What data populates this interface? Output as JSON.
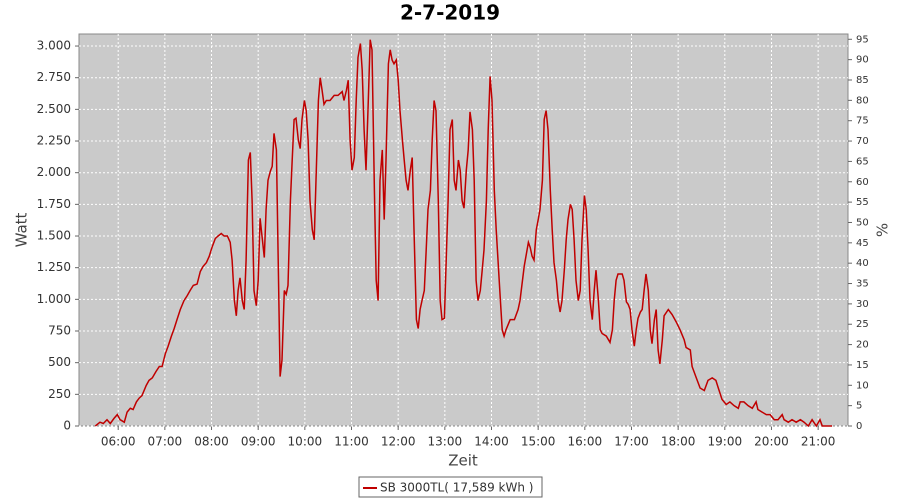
{
  "chart_data": {
    "type": "line",
    "title": "2-7-2019",
    "x_label": "Zeit",
    "y_label": "Watt",
    "y2_label": "%",
    "x": [
      5.51,
      5.61,
      5.68,
      5.76,
      5.83,
      5.91,
      5.98,
      6.04,
      6.13,
      6.19,
      6.26,
      6.32,
      6.39,
      6.45,
      6.51,
      6.6,
      6.66,
      6.73,
      6.81,
      6.88,
      6.94,
      7.01,
      7.07,
      7.14,
      7.2,
      7.26,
      7.33,
      7.41,
      7.48,
      7.54,
      7.61,
      7.69,
      7.76,
      7.82,
      7.89,
      7.95,
      8.01,
      8.08,
      8.14,
      8.21,
      8.27,
      8.34,
      8.4,
      8.44,
      8.49,
      8.53,
      8.57,
      8.61,
      8.66,
      8.7,
      8.74,
      8.79,
      8.83,
      8.87,
      8.91,
      8.96,
      9.0,
      9.04,
      9.09,
      9.13,
      9.17,
      9.21,
      9.26,
      9.3,
      9.34,
      9.39,
      9.43,
      9.47,
      9.51,
      9.56,
      9.6,
      9.64,
      9.69,
      9.73,
      9.77,
      9.81,
      9.86,
      9.9,
      9.94,
      9.99,
      10.03,
      10.07,
      10.11,
      10.16,
      10.2,
      10.24,
      10.29,
      10.33,
      10.37,
      10.41,
      10.46,
      10.54,
      10.63,
      10.71,
      10.8,
      10.84,
      10.89,
      10.93,
      10.97,
      11.01,
      11.06,
      11.1,
      11.14,
      11.19,
      11.23,
      11.27,
      11.31,
      11.36,
      11.4,
      11.44,
      11.49,
      11.53,
      11.57,
      11.61,
      11.66,
      11.7,
      11.74,
      11.79,
      11.83,
      11.87,
      11.91,
      11.96,
      12.0,
      12.04,
      12.09,
      12.13,
      12.17,
      12.21,
      12.26,
      12.3,
      12.34,
      12.39,
      12.43,
      12.47,
      12.51,
      12.56,
      12.6,
      12.64,
      12.69,
      12.73,
      12.77,
      12.81,
      12.86,
      12.9,
      12.94,
      12.99,
      13.03,
      13.07,
      13.11,
      13.16,
      13.2,
      13.24,
      13.29,
      13.33,
      13.37,
      13.41,
      13.46,
      13.5,
      13.54,
      13.59,
      13.63,
      13.67,
      13.71,
      13.76,
      13.8,
      13.84,
      13.89,
      13.93,
      13.97,
      14.01,
      14.06,
      14.1,
      14.14,
      14.19,
      14.23,
      14.27,
      14.31,
      14.4,
      14.49,
      14.57,
      14.61,
      14.7,
      14.79,
      14.83,
      14.87,
      14.91,
      14.96,
      15.0,
      15.04,
      15.09,
      15.13,
      15.17,
      15.21,
      15.26,
      15.3,
      15.34,
      15.39,
      15.43,
      15.47,
      15.51,
      15.56,
      15.6,
      15.64,
      15.69,
      15.73,
      15.77,
      15.81,
      15.86,
      15.9,
      15.94,
      15.99,
      16.03,
      16.07,
      16.11,
      16.16,
      16.2,
      16.24,
      16.29,
      16.33,
      16.37,
      16.46,
      16.54,
      16.59,
      16.63,
      16.67,
      16.71,
      16.8,
      16.84,
      16.89,
      16.93,
      16.97,
      17.01,
      17.06,
      17.1,
      17.14,
      17.19,
      17.23,
      17.27,
      17.31,
      17.36,
      17.4,
      17.44,
      17.49,
      17.53,
      17.57,
      17.61,
      17.66,
      17.7,
      17.79,
      17.87,
      17.96,
      18.04,
      18.13,
      18.17,
      18.26,
      18.3,
      18.39,
      18.47,
      18.56,
      18.64,
      18.73,
      18.81,
      18.86,
      18.94,
      19.03,
      19.11,
      19.2,
      19.29,
      19.33,
      19.41,
      19.5,
      19.59,
      19.67,
      19.71,
      19.8,
      19.89,
      19.97,
      20.06,
      20.14,
      20.23,
      20.27,
      20.36,
      20.44,
      20.53,
      20.62,
      20.7,
      20.79,
      20.87,
      20.96,
      21.04,
      21.09,
      21.17,
      21.3
    ],
    "series": [
      {
        "name": "SB 3000TL( 17,589 kWh )",
        "color": "#c00000",
        "values": [
          0,
          30,
          20,
          50,
          20,
          60,
          90,
          50,
          30,
          110,
          140,
          130,
          190,
          220,
          240,
          320,
          360,
          380,
          430,
          470,
          470,
          570,
          630,
          710,
          770,
          840,
          920,
          990,
          1030,
          1070,
          1110,
          1120,
          1220,
          1260,
          1290,
          1340,
          1410,
          1480,
          1500,
          1520,
          1500,
          1500,
          1450,
          1310,
          990,
          870,
          1070,
          1170,
          990,
          920,
          1310,
          2100,
          2160,
          1780,
          1070,
          950,
          1150,
          1640,
          1470,
          1330,
          1710,
          1940,
          2010,
          2050,
          2310,
          2180,
          1310,
          390,
          520,
          1070,
          1040,
          1110,
          1780,
          2100,
          2420,
          2430,
          2260,
          2190,
          2420,
          2570,
          2490,
          2260,
          1780,
          1550,
          1470,
          1940,
          2570,
          2750,
          2650,
          2540,
          2570,
          2570,
          2610,
          2610,
          2640,
          2570,
          2650,
          2730,
          2260,
          2020,
          2120,
          2570,
          2910,
          3020,
          2810,
          2340,
          2020,
          2570,
          3050,
          2970,
          1860,
          1150,
          990,
          1940,
          2180,
          1630,
          2100,
          2860,
          2970,
          2890,
          2860,
          2890,
          2730,
          2490,
          2260,
          2100,
          1940,
          1860,
          2020,
          2120,
          1550,
          840,
          770,
          920,
          990,
          1070,
          1390,
          1710,
          1860,
          2260,
          2570,
          2490,
          1780,
          990,
          840,
          850,
          1310,
          1780,
          2340,
          2420,
          1940,
          1860,
          2100,
          2020,
          1780,
          1720,
          2020,
          2180,
          2480,
          2340,
          1940,
          1150,
          990,
          1070,
          1230,
          1390,
          1780,
          2340,
          2760,
          2570,
          1860,
          1550,
          1310,
          990,
          760,
          710,
          760,
          840,
          840,
          920,
          990,
          1260,
          1450,
          1410,
          1340,
          1310,
          1550,
          1630,
          1710,
          1940,
          2420,
          2490,
          2340,
          1860,
          1550,
          1290,
          1150,
          990,
          900,
          990,
          1230,
          1470,
          1630,
          1750,
          1710,
          1470,
          1150,
          990,
          1070,
          1470,
          1820,
          1710,
          1390,
          990,
          840,
          1070,
          1230,
          990,
          760,
          730,
          710,
          660,
          760,
          990,
          1150,
          1200,
          1200,
          1150,
          980,
          960,
          920,
          760,
          630,
          760,
          850,
          900,
          920,
          1070,
          1200,
          1070,
          760,
          650,
          840,
          920,
          600,
          490,
          680,
          870,
          920,
          880,
          820,
          760,
          680,
          620,
          600,
          470,
          380,
          300,
          280,
          360,
          380,
          360,
          300,
          210,
          170,
          190,
          160,
          140,
          190,
          190,
          160,
          140,
          190,
          130,
          110,
          90,
          90,
          50,
          50,
          90,
          50,
          30,
          50,
          30,
          50,
          30,
          0,
          50,
          0,
          50,
          0,
          0,
          0
        ]
      }
    ],
    "xlim": [
      5.16,
      21.64
    ],
    "xticks": [
      {
        "value": 6,
        "label": "06:00"
      },
      {
        "value": 7,
        "label": "07:00"
      },
      {
        "value": 8,
        "label": "08:00"
      },
      {
        "value": 9,
        "label": "09:00"
      },
      {
        "value": 10,
        "label": "10:00"
      },
      {
        "value": 11,
        "label": "11:00"
      },
      {
        "value": 12,
        "label": "12:00"
      },
      {
        "value": 13,
        "label": "13:00"
      },
      {
        "value": 14,
        "label": "14:00"
      },
      {
        "value": 15,
        "label": "15:00"
      },
      {
        "value": 16,
        "label": "16:00"
      },
      {
        "value": 17,
        "label": "17:00"
      },
      {
        "value": 18,
        "label": "18:00"
      },
      {
        "value": 19,
        "label": "19:00"
      },
      {
        "value": 20,
        "label": "20:00"
      },
      {
        "value": 21,
        "label": "21:00"
      }
    ],
    "ylim": [
      0,
      3095
    ],
    "yticks": [
      0,
      250,
      500,
      750,
      {
        "value": 1000,
        "label": "1.000"
      },
      {
        "value": 1250,
        "label": "1.250"
      },
      {
        "value": 1500,
        "label": "1.500"
      },
      {
        "value": 1750,
        "label": "1.750"
      },
      {
        "value": 2000,
        "label": "2.000"
      },
      {
        "value": 2250,
        "label": "2.250"
      },
      {
        "value": 2500,
        "label": "2.500"
      },
      {
        "value": 2750,
        "label": "2.750"
      },
      {
        "value": 3000,
        "label": "3.000"
      }
    ],
    "y2lim": [
      0,
      96.3
    ],
    "y2ticks": [
      0,
      5,
      10,
      15,
      20,
      25,
      30,
      35,
      40,
      45,
      50,
      55,
      60,
      65,
      70,
      75,
      80,
      85,
      90,
      95
    ],
    "grid": true,
    "legend": "bottom"
  }
}
